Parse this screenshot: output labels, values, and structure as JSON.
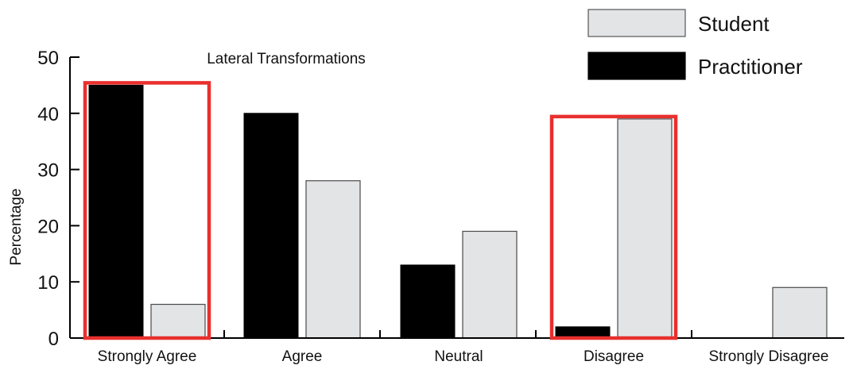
{
  "chart_data": {
    "type": "bar",
    "title": "Lateral Transformations",
    "xlabel": "",
    "ylabel": "Percentage",
    "ylim": [
      0,
      50
    ],
    "yticks": [
      0,
      10,
      20,
      30,
      40,
      50
    ],
    "categories": [
      "Strongly Agree",
      "Agree",
      "Neutral",
      "Disagree",
      "Strongly Disagree"
    ],
    "series": [
      {
        "name": "Practitioner",
        "values": [
          45,
          40,
          13,
          2,
          0
        ]
      },
      {
        "name": "Student",
        "values": [
          6,
          28,
          19,
          39,
          9
        ]
      }
    ],
    "legend_position": "top-right",
    "highlighted_categories": [
      "Strongly Agree",
      "Disagree"
    ],
    "colors": {
      "Practitioner": "#000000",
      "Student": "#e3e4e6",
      "highlight": "#e8302e"
    }
  }
}
